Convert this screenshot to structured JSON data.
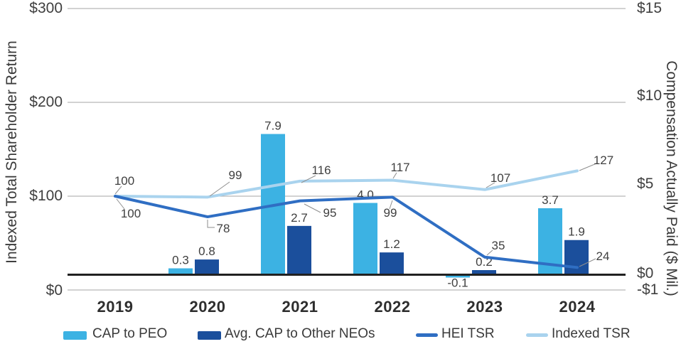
{
  "chart_data": {
    "type": "combo-bar-line",
    "categories": [
      "2019",
      "2020",
      "2021",
      "2022",
      "2023",
      "2024"
    ],
    "bar_series": [
      {
        "name": "CAP to PEO",
        "color": "#3CB2E3",
        "axis": "right",
        "values": [
          null,
          0.3,
          7.9,
          4.0,
          -0.1,
          3.7
        ],
        "labels": [
          "",
          "0.3",
          "7.9",
          "4.0",
          "-0.1",
          "3.7"
        ]
      },
      {
        "name": "Avg. CAP to Other NEOs",
        "color": "#1B4F9C",
        "axis": "right",
        "values": [
          null,
          0.8,
          2.7,
          1.2,
          0.2,
          1.9
        ],
        "labels": [
          "",
          "0.8",
          "2.7",
          "1.2",
          "0.2",
          "1.9"
        ]
      }
    ],
    "line_series": [
      {
        "name": "HEI TSR",
        "color": "#2F6EC3",
        "axis": "left",
        "values": [
          100,
          78,
          95,
          99,
          35,
          24
        ]
      },
      {
        "name": "Indexed TSR",
        "color": "#A9D3EE",
        "axis": "left",
        "values": [
          100,
          99,
          116,
          117,
          107,
          127
        ]
      }
    ],
    "left_axis": {
      "title": "Indexed Total Shareholder Return",
      "ticks": [
        "$300",
        "$200",
        "$100",
        "$0"
      ],
      "range": [
        0,
        300
      ],
      "grid": true
    },
    "right_axis": {
      "title": "Compensation Actually Paid ($ Mil.)",
      "ticks": [
        "$15",
        "$10",
        "$5",
        "$0",
        "-$1"
      ],
      "range": [
        -1,
        15
      ],
      "grid": false
    },
    "legend_position": "bottom"
  }
}
